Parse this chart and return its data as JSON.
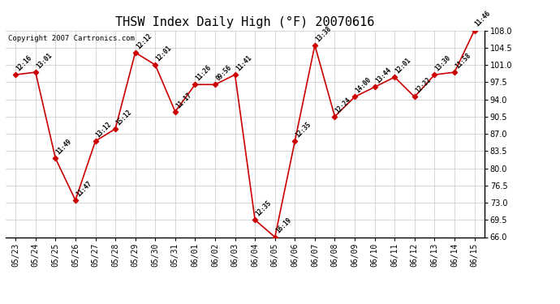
{
  "title": "THSW Index Daily High (°F) 20070616",
  "copyright": "Copyright 2007 Cartronics.com",
  "labels": [
    "05/23",
    "05/24",
    "05/25",
    "05/26",
    "05/27",
    "05/28",
    "05/29",
    "05/30",
    "05/31",
    "06/01",
    "06/02",
    "06/03",
    "06/04",
    "06/05",
    "06/06",
    "06/07",
    "06/08",
    "06/09",
    "06/10",
    "06/11",
    "06/12",
    "06/13",
    "06/14",
    "06/15"
  ],
  "values": [
    99.0,
    99.5,
    82.0,
    73.5,
    85.5,
    88.0,
    103.5,
    101.0,
    91.5,
    97.0,
    97.0,
    99.0,
    69.5,
    66.0,
    85.5,
    105.0,
    90.5,
    94.5,
    96.5,
    98.5,
    94.5,
    99.0,
    99.5,
    108.0
  ],
  "times": [
    "12:16",
    "13:01",
    "11:49",
    "11:47",
    "13:12",
    "15:12",
    "12:12",
    "12:01",
    "11:17",
    "11:26",
    "09:56",
    "11:41",
    "12:35",
    "16:19",
    "12:35",
    "13:38",
    "12:24",
    "14:00",
    "13:44",
    "12:01",
    "12:22",
    "13:30",
    "11:58",
    "11:46"
  ],
  "line_color": "#cc0000",
  "marker_color": "#cc0000",
  "bg_color": "#ffffff",
  "grid_color": "#c8c8c8",
  "ylim": [
    66.0,
    108.0
  ],
  "yticks": [
    66.0,
    69.5,
    73.0,
    76.5,
    80.0,
    83.5,
    87.0,
    90.5,
    94.0,
    97.5,
    101.0,
    104.5,
    108.0
  ],
  "title_fontsize": 11,
  "tick_fontsize": 7,
  "copyright_fontsize": 6.5
}
